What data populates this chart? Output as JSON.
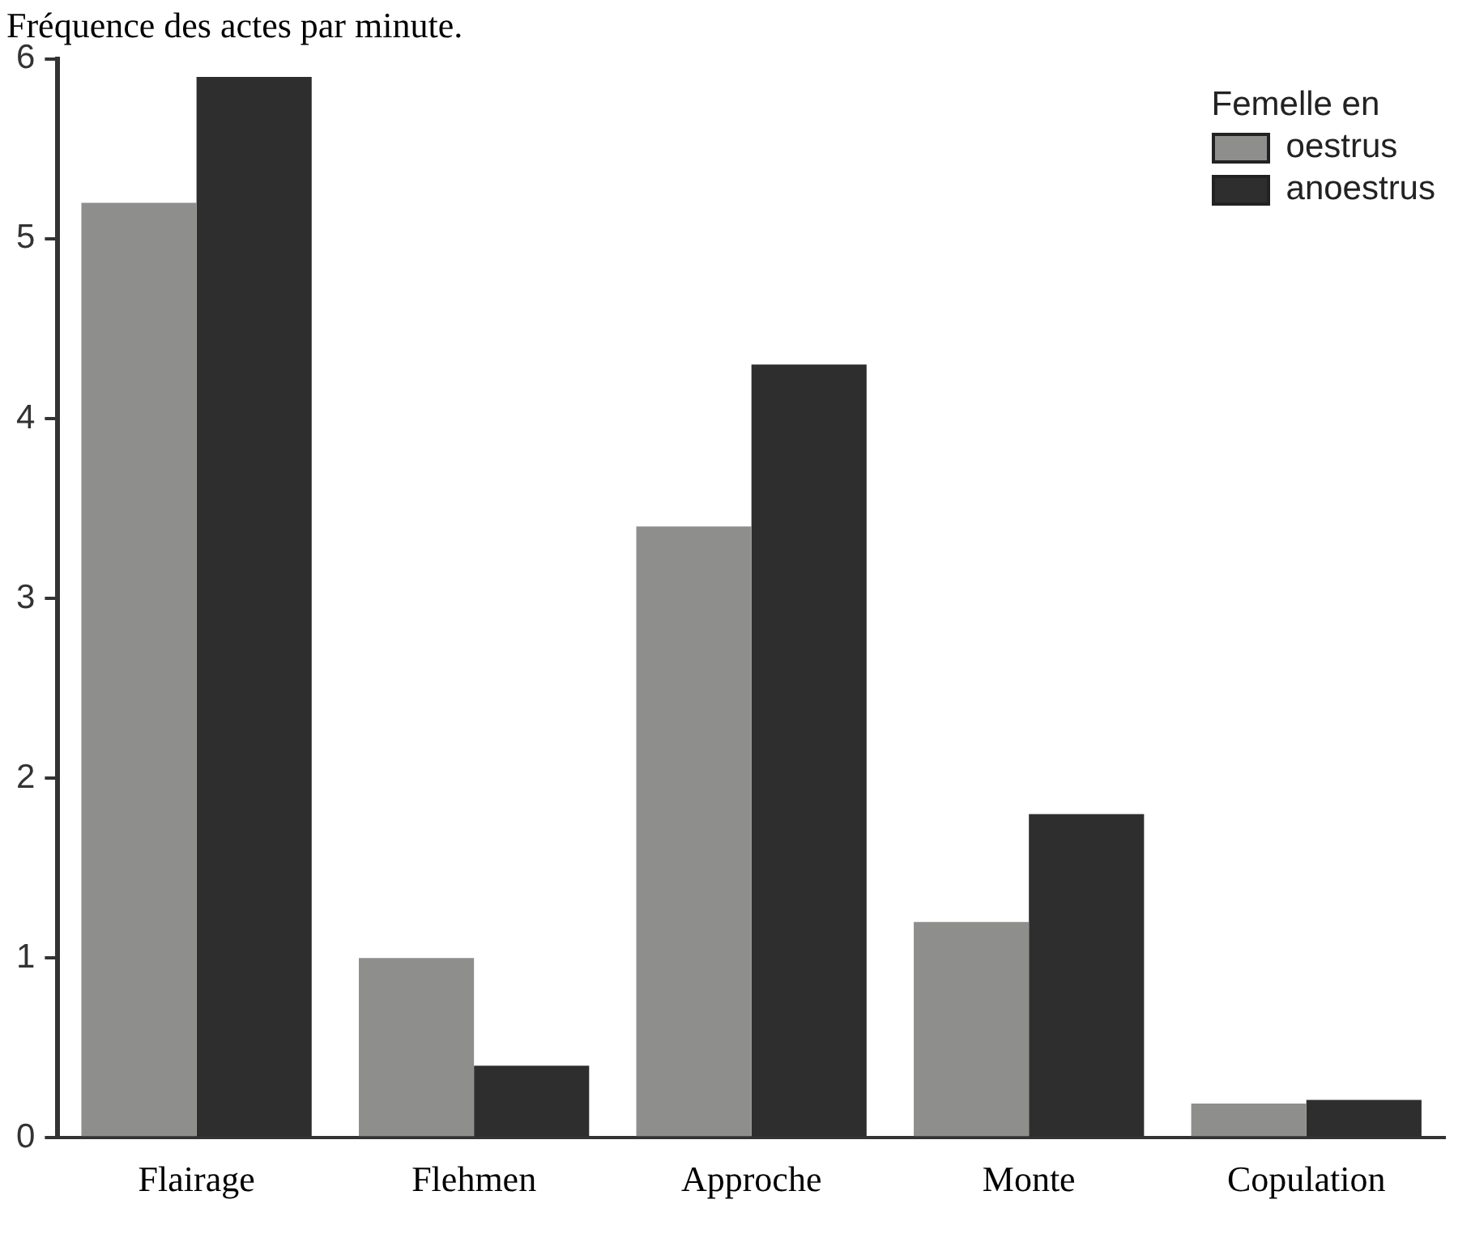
{
  "chart_data": {
    "type": "bar",
    "title": "Fréquence des actes par minute.",
    "categories": [
      "Flairage",
      "Flehmen",
      "Approche",
      "Monte",
      "Copulation"
    ],
    "series": [
      {
        "name": "oestrus",
        "color": "#8e8e8c",
        "values": [
          5.2,
          1.0,
          3.4,
          1.2,
          0.19
        ]
      },
      {
        "name": "anoestrus",
        "color": "#2e2e2e",
        "values": [
          5.9,
          0.4,
          4.3,
          1.8,
          0.21
        ]
      }
    ],
    "legend_title": "Femelle en",
    "legend": "top right",
    "ylim": [
      0,
      6
    ],
    "yticks": [
      0,
      1,
      2,
      3,
      4,
      5,
      6
    ],
    "grid": false
  }
}
